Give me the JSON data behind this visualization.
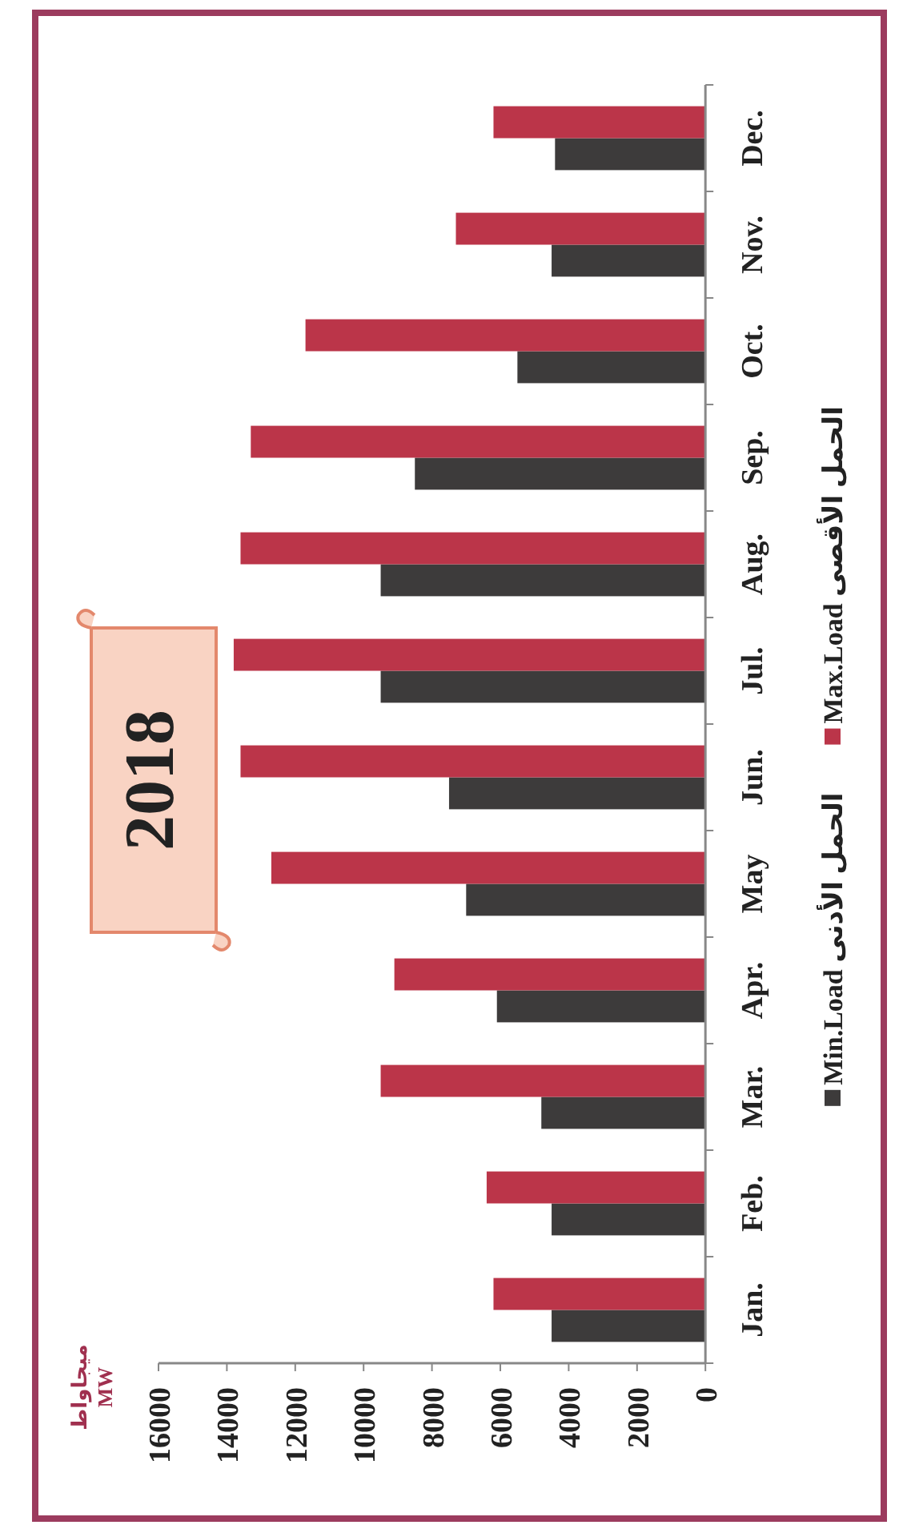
{
  "chart_data": {
    "type": "bar",
    "orientation": "horizontal",
    "title": "2018",
    "annotations": [
      "ميجاواط\nMW"
    ],
    "categories": [
      "Dec.",
      "Nov.",
      "Oct.",
      "Sep.",
      "Aug.",
      "Jul.",
      "Jun.",
      "May",
      "Apr.",
      "Mar.",
      "Feb.",
      "Jan."
    ],
    "series": [
      {
        "name": "Min.Load الحمل الأدنى",
        "color": "#3d3b3b",
        "values": [
          4400,
          4500,
          5500,
          8500,
          9500,
          9500,
          7500,
          7000,
          6100,
          4800,
          4500,
          4500
        ]
      },
      {
        "name": "Max.Load الحمل الأقصى",
        "color": "#bb3549",
        "values": [
          6200,
          7300,
          11700,
          13300,
          13600,
          13800,
          13600,
          12700,
          9100,
          9500,
          6400,
          6200
        ]
      }
    ],
    "xlim": [
      16000,
      0
    ],
    "xticks": [
      16000,
      14000,
      12000,
      10000,
      8000,
      6000,
      4000,
      2000,
      0
    ],
    "grid": false,
    "legend": "right"
  }
}
